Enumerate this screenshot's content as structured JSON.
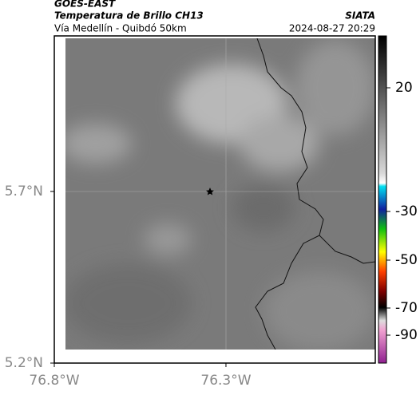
{
  "header": {
    "satellite": "GOES-EAST",
    "product": "Temperatura de Brillo CH13",
    "source": "SIATA",
    "location": "Vía Medellín - Quibdó 50km",
    "datetime": "2024-08-27 20:29"
  },
  "map": {
    "xlim": [
      -76.8,
      -75.865
    ],
    "ylim": [
      5.2,
      6.153
    ],
    "xticks": [
      {
        "value": -76.8,
        "label": "76.8°W"
      },
      {
        "value": -76.3,
        "label": "76.3°W"
      }
    ],
    "yticks": [
      {
        "value": 5.7,
        "label": "5.7°N"
      },
      {
        "value": 5.2,
        "label": "5.2°N"
      }
    ]
  },
  "colorbar": {
    "ticks": [
      20,
      -30,
      -50,
      -70,
      -90
    ]
  }
}
